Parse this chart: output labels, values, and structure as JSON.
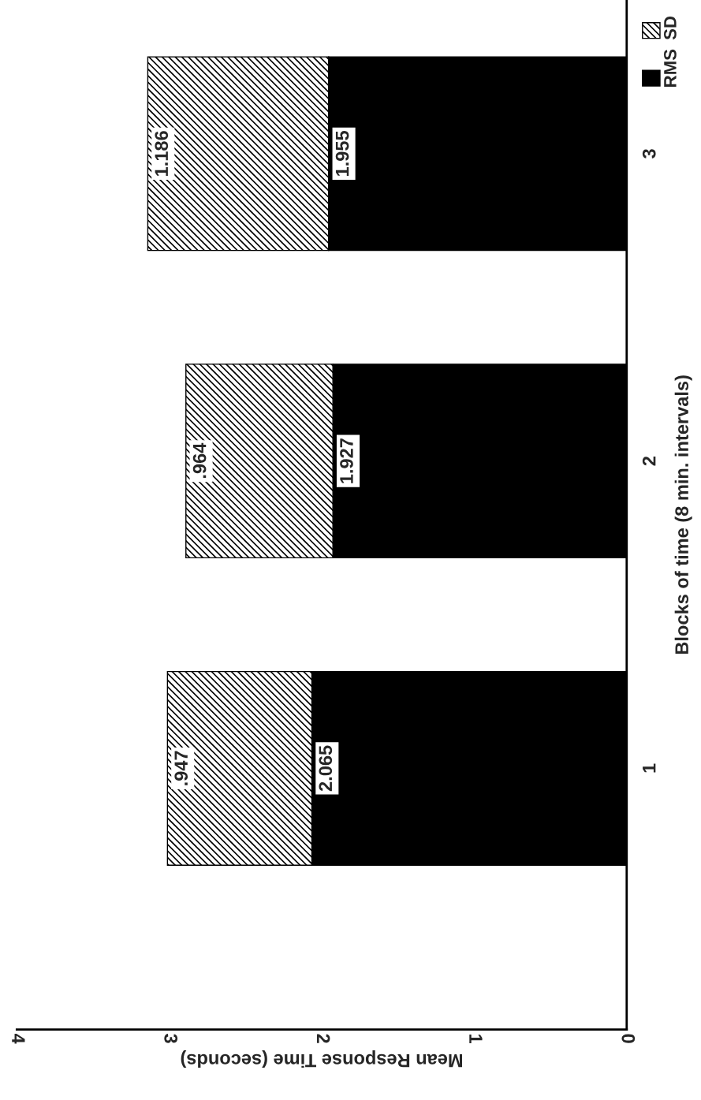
{
  "chart_data": {
    "type": "bar",
    "orientation": "horizontal",
    "stacked": true,
    "categories": [
      "3",
      "2",
      "1"
    ],
    "series": [
      {
        "name": "RMS",
        "color": "#000000",
        "values": [
          1.955,
          1.927,
          2.065
        ],
        "value_labels": [
          "1.955",
          "1.927",
          "2.065"
        ]
      },
      {
        "name": "SD",
        "color": "#000000",
        "values": [
          1.186,
          0.964,
          0.947
        ],
        "value_labels": [
          "1.186",
          ".964",
          ".947"
        ]
      }
    ],
    "xlabel": "Mean Response Time (seconds)",
    "ylabel": "Blocks of time (8 min. intervals)",
    "xlim": [
      4,
      0
    ],
    "xticks": [
      4,
      3,
      2,
      1,
      0
    ],
    "grid": false,
    "legend": "top right"
  }
}
